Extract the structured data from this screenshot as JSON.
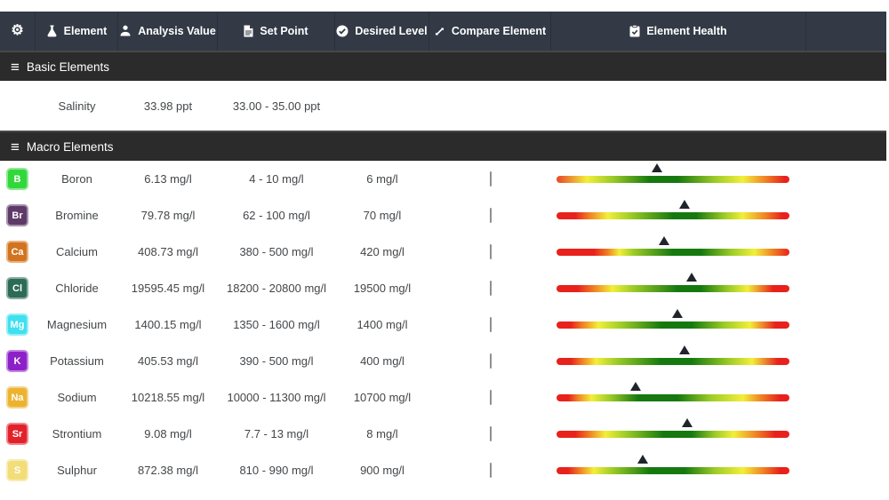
{
  "header": {
    "columns": [
      {
        "label": "",
        "icon": "gear-icon"
      },
      {
        "label": "Element",
        "icon": "flask-icon"
      },
      {
        "label": "Analysis Value",
        "icon": "analysis-person-icon"
      },
      {
        "label": "Set Point",
        "icon": "file-icon"
      },
      {
        "label": "Desired Level",
        "icon": "check-circle-icon"
      },
      {
        "label": "Compare Element",
        "icon": "compare-arrows-icon"
      },
      {
        "label": "Element Health",
        "icon": "clipboard-check-icon"
      },
      {
        "label": "",
        "icon": ""
      }
    ],
    "background": "#333a46"
  },
  "sections": [
    {
      "title": "Basic Elements"
    },
    {
      "title": "Macro Elements"
    }
  ],
  "basic_rows": [
    {
      "name": "Salinity",
      "analysis_value": "33.98 ppt",
      "set_point": "33.00 - 35.00 ppt"
    }
  ],
  "macro_rows": [
    {
      "symbol": "B",
      "color": "#32d73c",
      "name": "Boron",
      "analysis_value": "6.13 mg/l",
      "set_point": "4 - 10 mg/l",
      "desired_level": "6 mg/l",
      "compare_checked": false,
      "health": {
        "marker_pct": 43,
        "gradient": "linear-gradient(90deg,#e8442b 0%,#f2ef39 13%,#9ccb27 24%,#15790f 40%,#15790f 52%,#9ccb27 68%,#f2ef39 80%,#f07f23 90%,#e8211d 98%)"
      }
    },
    {
      "symbol": "Br",
      "color": "#5e3a68",
      "name": "Bromine",
      "analysis_value": "79.78 mg/l",
      "set_point": "62 - 100 mg/l",
      "desired_level": "70 mg/l",
      "compare_checked": false,
      "health": {
        "marker_pct": 55,
        "gradient": "linear-gradient(90deg,#e8211d 0%,#e8211d 8%,#f07f23 14%,#f2ef39 22%,#9ccb27 32%,#15790f 50%,#15790f 60%,#9ccb27 72%,#f2ef39 80%,#f07f23 90%,#e8211d 97%)"
      }
    },
    {
      "symbol": "Ca",
      "color": "#d3731f",
      "name": "Calcium",
      "analysis_value": "408.73 mg/l",
      "set_point": "380 - 500 mg/l",
      "desired_level": "420 mg/l",
      "compare_checked": false,
      "health": {
        "marker_pct": 46,
        "gradient": "linear-gradient(90deg,#e8211d 0%,#e8211d 16%,#f07f23 22%,#f2ef39 27%,#9ccb27 33%,#15790f 50%,#15790f 62%,#9ccb27 75%,#f2ef39 85%,#f07f23 93%,#e8211d 100%)"
      }
    },
    {
      "symbol": "Cl",
      "color": "#2d6b55",
      "name": "Chloride",
      "analysis_value": "19595.45 mg/l",
      "set_point": "18200 - 20800 mg/l",
      "desired_level": "19500 mg/l",
      "compare_checked": false,
      "health": {
        "marker_pct": 58,
        "gradient": "linear-gradient(90deg,#e8211d 0%,#e8211d 9%,#f07f23 16%,#f2ef39 24%,#9ccb27 33%,#15790f 52%,#15790f 62%,#9ccb27 74%,#f2ef39 82%,#e8211d 93%)"
      }
    },
    {
      "symbol": "Mg",
      "color": "#3fe0ef",
      "name": "Magnesium",
      "analysis_value": "1400.15 mg/l",
      "set_point": "1350 - 1600 mg/l",
      "desired_level": "1400 mg/l",
      "compare_checked": false,
      "health": {
        "marker_pct": 52,
        "gradient": "linear-gradient(90deg,#e8211d 0%,#e8211d 6%,#f07f23 11%,#f2ef39 18%,#9ccb27 28%,#15790f 45%,#15790f 58%,#9ccb27 72%,#f2ef39 83%,#e8211d 94%)"
      }
    },
    {
      "symbol": "K",
      "color": "#8d1fc8",
      "name": "Potassium",
      "analysis_value": "405.53 mg/l",
      "set_point": "390 - 500 mg/l",
      "desired_level": "400 mg/l",
      "compare_checked": false,
      "health": {
        "marker_pct": 55,
        "gradient": "linear-gradient(90deg,#e8211d 0%,#e8211d 6%,#f07f23 11%,#f2ef39 17%,#9ccb27 26%,#15790f 45%,#15790f 58%,#9ccb27 74%,#f2ef39 84%,#e8211d 95%)"
      }
    },
    {
      "symbol": "Na",
      "color": "#ecb331",
      "name": "Sodium",
      "analysis_value": "10218.55 mg/l",
      "set_point": "10000 - 11300 mg/l",
      "desired_level": "10700 mg/l",
      "compare_checked": false,
      "health": {
        "marker_pct": 34,
        "gradient": "linear-gradient(90deg,#e8211d 0%,#e8211d 5%,#f07f23 9%,#f2ef39 15%,#9ccb27 23%,#15790f 35%,#15790f 52%,#9ccb27 66%,#f2ef39 80%,#f07f23 88%,#e8211d 96%)"
      }
    },
    {
      "symbol": "Sr",
      "color": "#e2222a",
      "name": "Strontium",
      "analysis_value": "9.08 mg/l",
      "set_point": "7.7 - 13 mg/l",
      "desired_level": "8 mg/l",
      "compare_checked": false,
      "health": {
        "marker_pct": 56,
        "gradient": "linear-gradient(90deg,#e8211d 0%,#e8211d 8%,#f07f23 14%,#f2ef39 21%,#9ccb27 30%,#15790f 46%,#15790f 58%,#9ccb27 68%,#f2ef39 76%,#f07f23 86%,#e8211d 94%)"
      }
    },
    {
      "symbol": "S",
      "color": "#f2dd78",
      "name": "Sulphur",
      "analysis_value": "872.38 mg/l",
      "set_point": "810 - 990 mg/l",
      "desired_level": "900 mg/l",
      "compare_checked": false,
      "health": {
        "marker_pct": 37,
        "gradient": "linear-gradient(90deg,#e8211d 0%,#e8211d 5%,#f07f23 10%,#f2ef39 16%,#9ccb27 24%,#15790f 40%,#15790f 55%,#9ccb27 68%,#f2ef39 80%,#f07f23 89%,#e8211d 96%)"
      }
    }
  ],
  "colors": {
    "header_bg": "#333a46",
    "section_bg": "#2b2b2b",
    "row_text": "#434649",
    "marker": "#20242b"
  }
}
